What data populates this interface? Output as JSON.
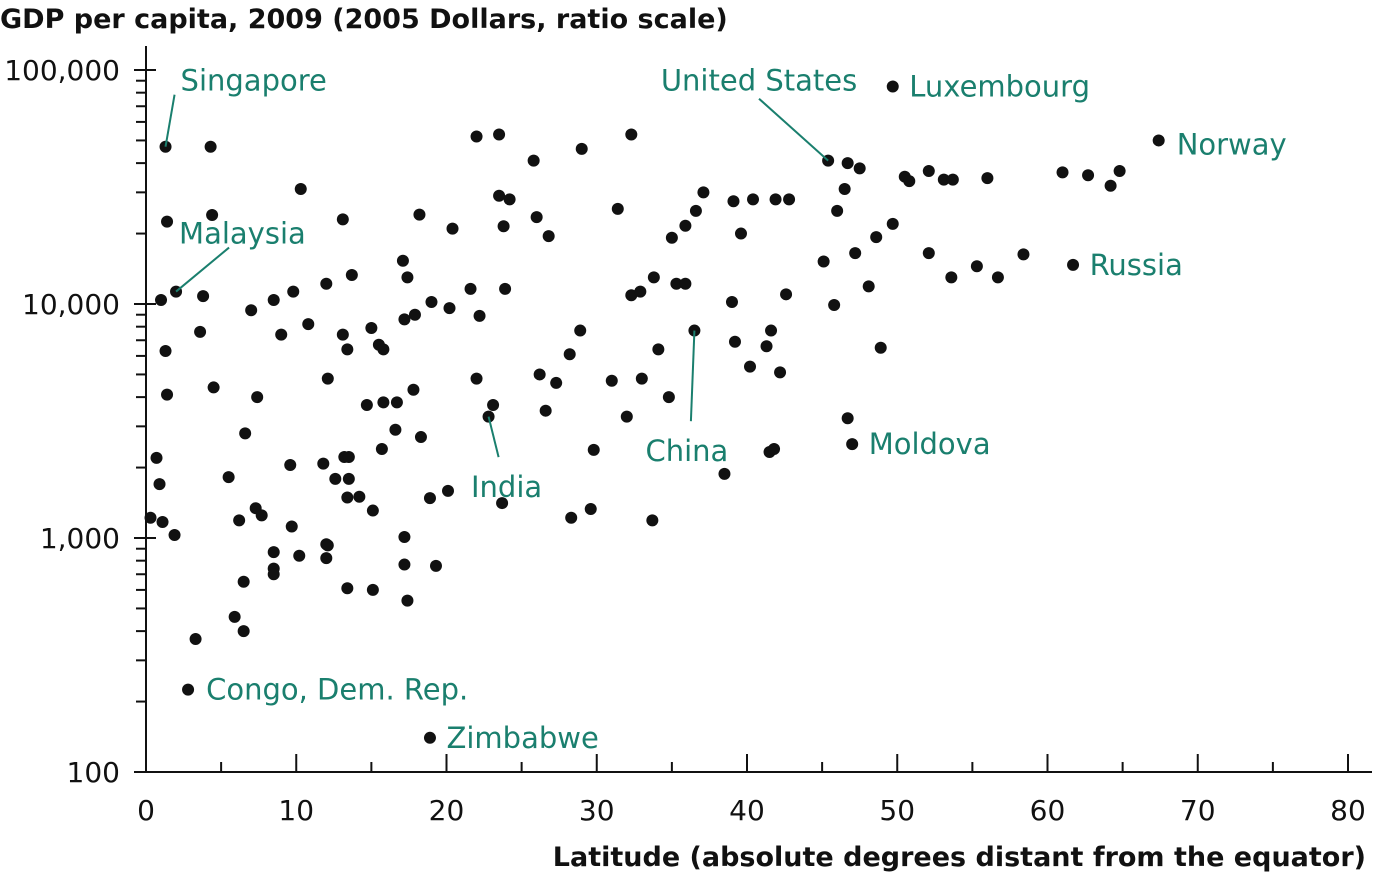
{
  "chart_data": {
    "type": "scatter",
    "title": "GDP per capita, 2009 (2005 Dollars, ratio scale)",
    "xlabel": "Latitude (absolute degrees distant from the equator)",
    "ylabel": "",
    "xlim": [
      0,
      80
    ],
    "ylim": [
      100,
      100000
    ],
    "yscale": "log",
    "grid": false,
    "x_ticks": [
      0,
      10,
      20,
      30,
      40,
      50,
      60,
      70,
      80
    ],
    "x_tick_labels": [
      "0",
      "10",
      "20",
      "30",
      "40",
      "50",
      "60",
      "70",
      "80"
    ],
    "y_ticks": [
      100,
      1000,
      10000,
      100000
    ],
    "y_tick_labels": [
      "100",
      "1,000",
      "10,000",
      "100,000"
    ],
    "annotation_color": "#1a7f6e",
    "point_color": "#111111",
    "points": [
      [
        1.3,
        47000
      ],
      [
        4.3,
        47000
      ],
      [
        10.3,
        31000
      ],
      [
        1.4,
        22500
      ],
      [
        4.4,
        24000
      ],
      [
        13.1,
        23000
      ],
      [
        1.0,
        10400
      ],
      [
        2.0,
        11300
      ],
      [
        3.8,
        10800
      ],
      [
        1.3,
        6300
      ],
      [
        3.6,
        7600
      ],
      [
        1.4,
        4100
      ],
      [
        4.5,
        4400
      ],
      [
        0.7,
        2200
      ],
      [
        0.9,
        1700
      ],
      [
        0.3,
        1220
      ],
      [
        1.1,
        1170
      ],
      [
        1.9,
        1030
      ],
      [
        7.0,
        9400
      ],
      [
        8.5,
        10400
      ],
      [
        9.8,
        11300
      ],
      [
        9.0,
        7400
      ],
      [
        10.8,
        8200
      ],
      [
        12.0,
        12200
      ],
      [
        13.7,
        13300
      ],
      [
        13.1,
        7400
      ],
      [
        13.4,
        6400
      ],
      [
        12.1,
        4800
      ],
      [
        7.4,
        4000
      ],
      [
        6.6,
        2800
      ],
      [
        5.5,
        1820
      ],
      [
        6.2,
        1190
      ],
      [
        7.3,
        1340
      ],
      [
        7.7,
        1250
      ],
      [
        9.6,
        2050
      ],
      [
        9.7,
        1120
      ],
      [
        8.5,
        870
      ],
      [
        8.5,
        740
      ],
      [
        8.5,
        700
      ],
      [
        10.2,
        840
      ],
      [
        11.8,
        2080
      ],
      [
        12.6,
        1790
      ],
      [
        12.0,
        940
      ],
      [
        12.1,
        930
      ],
      [
        12.0,
        820
      ],
      [
        13.2,
        2220
      ],
      [
        13.5,
        2220
      ],
      [
        13.4,
        1490
      ],
      [
        14.2,
        1500
      ],
      [
        13.5,
        1790
      ],
      [
        15.1,
        1310
      ],
      [
        14.7,
        3700
      ],
      [
        15.8,
        3800
      ],
      [
        16.7,
        3800
      ],
      [
        16.6,
        2900
      ],
      [
        15.7,
        2400
      ],
      [
        15.0,
        7900
      ],
      [
        15.5,
        6700
      ],
      [
        15.8,
        6400
      ],
      [
        17.2,
        8600
      ],
      [
        17.9,
        9000
      ],
      [
        17.1,
        15300
      ],
      [
        17.4,
        13000
      ],
      [
        18.2,
        24100
      ],
      [
        19.0,
        10200
      ],
      [
        20.2,
        9600
      ],
      [
        20.4,
        21000
      ],
      [
        21.6,
        11600
      ],
      [
        22.2,
        8900
      ],
      [
        22.0,
        52000
      ],
      [
        23.5,
        53000
      ],
      [
        23.5,
        29000
      ],
      [
        24.2,
        28000
      ],
      [
        23.8,
        21500
      ],
      [
        23.9,
        11600
      ],
      [
        22.0,
        4800
      ],
      [
        17.8,
        4300
      ],
      [
        18.3,
        2700
      ],
      [
        18.9,
        1480
      ],
      [
        20.1,
        1590
      ],
      [
        19.3,
        760
      ],
      [
        17.2,
        1010
      ],
      [
        17.2,
        770
      ],
      [
        17.4,
        540
      ],
      [
        13.4,
        610
      ],
      [
        15.1,
        600
      ],
      [
        5.9,
        460
      ],
      [
        6.5,
        400
      ],
      [
        6.5,
        650
      ],
      [
        3.3,
        370
      ],
      [
        2.8,
        225
      ],
      [
        18.9,
        140
      ],
      [
        25.8,
        41000
      ],
      [
        26.0,
        23500
      ],
      [
        26.8,
        19500
      ],
      [
        29.0,
        46000
      ],
      [
        32.3,
        53000
      ],
      [
        31.4,
        25500
      ],
      [
        26.2,
        5000
      ],
      [
        26.6,
        3500
      ],
      [
        27.3,
        4600
      ],
      [
        28.2,
        6100
      ],
      [
        28.9,
        7700
      ],
      [
        29.8,
        2380
      ],
      [
        28.3,
        1220
      ],
      [
        29.6,
        1330
      ],
      [
        23.1,
        3700
      ],
      [
        22.8,
        3300
      ],
      [
        23.7,
        1410
      ],
      [
        31.0,
        4700
      ],
      [
        32.0,
        3300
      ],
      [
        32.3,
        10900
      ],
      [
        32.9,
        11300
      ],
      [
        33.8,
        13000
      ],
      [
        34.1,
        6400
      ],
      [
        33.0,
        4800
      ],
      [
        34.8,
        4000
      ],
      [
        35.0,
        19200
      ],
      [
        35.9,
        21600
      ],
      [
        36.6,
        25000
      ],
      [
        37.1,
        30000
      ],
      [
        35.3,
        12200
      ],
      [
        35.9,
        12200
      ],
      [
        36.5,
        7700
      ],
      [
        33.7,
        1190
      ],
      [
        38.5,
        1880
      ],
      [
        39.1,
        27500
      ],
      [
        40.4,
        28000
      ],
      [
        41.9,
        28000
      ],
      [
        42.8,
        28000
      ],
      [
        39.6,
        20000
      ],
      [
        39.0,
        10200
      ],
      [
        39.2,
        6900
      ],
      [
        40.2,
        5400
      ],
      [
        41.3,
        6600
      ],
      [
        41.6,
        7700
      ],
      [
        42.2,
        5100
      ],
      [
        42.6,
        11000
      ],
      [
        41.5,
        2330
      ],
      [
        41.8,
        2400
      ],
      [
        45.4,
        41000
      ],
      [
        46.7,
        40000
      ],
      [
        47.5,
        38000
      ],
      [
        46.5,
        31000
      ],
      [
        46.0,
        25000
      ],
      [
        45.1,
        15200
      ],
      [
        45.8,
        9900
      ],
      [
        47.2,
        16500
      ],
      [
        48.1,
        11900
      ],
      [
        48.6,
        19300
      ],
      [
        49.7,
        22000
      ],
      [
        48.9,
        6500
      ],
      [
        46.7,
        3250
      ],
      [
        47.0,
        2520
      ],
      [
        49.7,
        85000
      ],
      [
        50.5,
        35000
      ],
      [
        50.8,
        33500
      ],
      [
        52.1,
        37000
      ],
      [
        53.1,
        34000
      ],
      [
        53.7,
        34000
      ],
      [
        56.0,
        34500
      ],
      [
        52.1,
        16500
      ],
      [
        53.6,
        13000
      ],
      [
        55.3,
        14500
      ],
      [
        56.7,
        13000
      ],
      [
        58.4,
        16300
      ],
      [
        61.0,
        36500
      ],
      [
        62.7,
        35500
      ],
      [
        64.2,
        32000
      ],
      [
        64.8,
        37000
      ],
      [
        61.7,
        14700
      ],
      [
        67.4,
        50000
      ]
    ],
    "annotations": [
      {
        "name": "singapore",
        "text": "Singapore",
        "x": 1.3,
        "y": 47000,
        "text_x": 2.3,
        "text_y": 90000,
        "anchor": "start",
        "leader": true
      },
      {
        "name": "malaysia",
        "text": "Malaysia",
        "x": 2.0,
        "y": 11300,
        "text_x": 2.2,
        "text_y": 20000,
        "anchor": "start",
        "leader": true
      },
      {
        "name": "united-states",
        "text": "United States",
        "x": 45.4,
        "y": 41000,
        "text_x": 40.8,
        "text_y": 90000,
        "anchor": "middle",
        "leader": true
      },
      {
        "name": "luxembourg",
        "text": "Luxembourg",
        "x": 49.7,
        "y": 85000,
        "text_x": 50.8,
        "text_y": 85000,
        "anchor": "start",
        "leader": false
      },
      {
        "name": "norway",
        "text": "Norway",
        "x": 67.4,
        "y": 50000,
        "text_x": 68.6,
        "text_y": 48000,
        "anchor": "start",
        "leader": false
      },
      {
        "name": "russia",
        "text": "Russia",
        "x": 61.7,
        "y": 14700,
        "text_x": 62.8,
        "text_y": 14700,
        "anchor": "start",
        "leader": false
      },
      {
        "name": "china",
        "text": "China",
        "x": 36.5,
        "y": 7700,
        "text_x": 36.0,
        "text_y": 2350,
        "anchor": "middle",
        "leader": true
      },
      {
        "name": "india",
        "text": "India",
        "x": 22.8,
        "y": 3300,
        "text_x": 24.0,
        "text_y": 1650,
        "anchor": "middle",
        "leader": true
      },
      {
        "name": "moldova",
        "text": "Moldova",
        "x": 47.0,
        "y": 2520,
        "text_x": 48.1,
        "text_y": 2520,
        "anchor": "start",
        "leader": false
      },
      {
        "name": "congo",
        "text": "Congo, Dem. Rep.",
        "x": 2.8,
        "y": 225,
        "text_x": 4.0,
        "text_y": 225,
        "anchor": "start",
        "leader": false
      },
      {
        "name": "zimbabwe",
        "text": "Zimbabwe",
        "x": 18.9,
        "y": 140,
        "text_x": 20.0,
        "text_y": 140,
        "anchor": "start",
        "leader": false
      }
    ]
  }
}
